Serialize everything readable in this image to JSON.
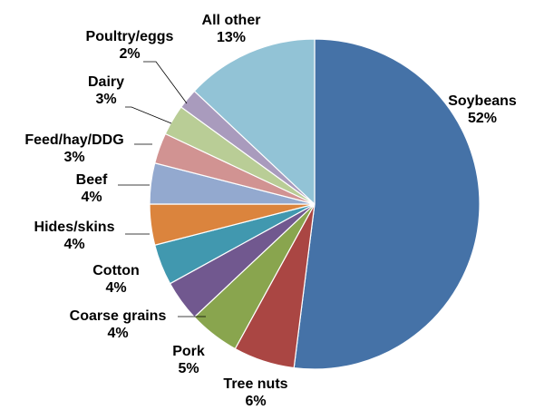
{
  "chart_data": {
    "type": "pie",
    "slices": [
      {
        "label": "Soybeans",
        "value": 52,
        "value_label": "52%",
        "color": "#4572A7"
      },
      {
        "label": "Tree nuts",
        "value": 6,
        "value_label": "6%",
        "color": "#AA4643"
      },
      {
        "label": "Pork",
        "value": 5,
        "value_label": "5%",
        "color": "#89A54E"
      },
      {
        "label": "Coarse grains",
        "value": 4,
        "value_label": "4%",
        "color": "#71588F"
      },
      {
        "label": "Cotton",
        "value": 4,
        "value_label": "4%",
        "color": "#4198AF"
      },
      {
        "label": "Hides/skins",
        "value": 4,
        "value_label": "4%",
        "color": "#DB843D"
      },
      {
        "label": "Beef",
        "value": 4,
        "value_label": "4%",
        "color": "#93A9CF"
      },
      {
        "label": "Feed/hay/DDG",
        "value": 3,
        "value_label": "3%",
        "color": "#D19392"
      },
      {
        "label": "Dairy",
        "value": 3,
        "value_label": "3%",
        "color": "#B9CD96"
      },
      {
        "label": "Poultry/eggs",
        "value": 2,
        "value_label": "2%",
        "color": "#A99BBD"
      },
      {
        "label": "All other",
        "value": 13,
        "value_label": "13%",
        "color": "#92C3D6"
      }
    ]
  }
}
